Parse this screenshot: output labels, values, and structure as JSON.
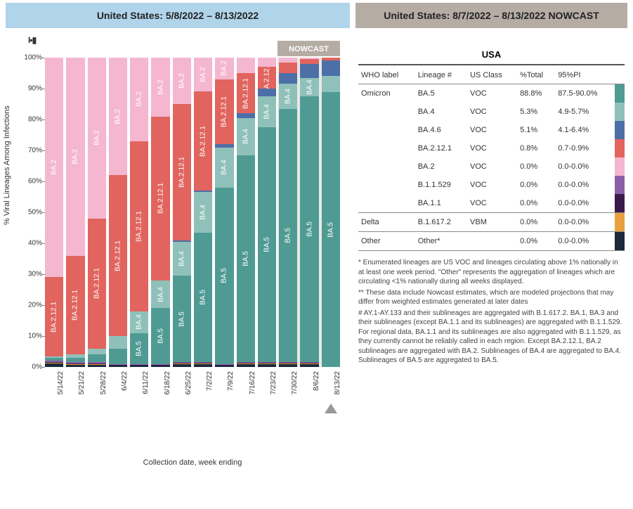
{
  "headers": {
    "left": "United States: 5/8/2022 – 8/13/2022",
    "right": "United States: 8/7/2022 – 8/13/2022 NOWCAST"
  },
  "colors": {
    "header_left_bg": "#b0d4ea",
    "header_right_bg": "#b5aca4",
    "BA.5": "#4f9b94",
    "BA.4": "#8fc1ba",
    "BA.4.6": "#4d6fa8",
    "BA.2.12.1": "#e1645e",
    "BA.2": "#f4b7cf",
    "B.1.1.529": "#8b5fa8",
    "BA.1.1": "#3a1a4a",
    "B.1.617.2": "#e8a23d",
    "Other": "#1a2a3a"
  },
  "chart": {
    "type": "stacked-bar",
    "y_label": "% Viral Lineages Among Infections",
    "x_label": "Collection date, week ending",
    "nowcast_label": "NOWCAST",
    "ylim": [
      0,
      100
    ],
    "yticks": [
      0,
      10,
      20,
      30,
      40,
      50,
      60,
      70,
      80,
      90,
      100
    ],
    "ytick_labels": [
      "0%",
      "10%",
      "20%",
      "30%",
      "40%",
      "50%",
      "60%",
      "70%",
      "80%",
      "90%",
      "100%"
    ],
    "categories": [
      "5/14/22",
      "5/21/22",
      "5/28/22",
      "6/4/22",
      "6/11/22",
      "6/18/22",
      "6/25/22",
      "7/2/22",
      "7/9/22",
      "7/16/22",
      "7/23/22",
      "7/30/22",
      "8/6/22",
      "8/13/22"
    ],
    "nowcast_start_index": 11,
    "arrow_index": 13,
    "series_order": [
      "Other",
      "B.1.617.2",
      "BA.1.1",
      "B.1.1.529",
      "BA.5",
      "BA.4",
      "BA.4.6",
      "BA.2.12.1",
      "BA.2"
    ],
    "label_lineages": [
      "BA.5",
      "BA.4",
      "BA.2.12.1",
      "BA.2",
      "BA.4.6"
    ],
    "min_label_pct": 6,
    "data": {
      "BA.5": [
        1.0,
        1.5,
        2.5,
        5.0,
        10.0,
        18.0,
        28.0,
        42.0,
        57.0,
        67.0,
        76.0,
        82.0,
        86.0,
        88.8
      ],
      "BA.4": [
        0.5,
        1.0,
        2.0,
        4.0,
        7.0,
        9.0,
        11.0,
        13.0,
        13.0,
        12.0,
        10.0,
        8.0,
        6.0,
        5.3
      ],
      "BA.4.6": [
        0.0,
        0.0,
        0.0,
        0.0,
        0.0,
        0.0,
        0.5,
        0.5,
        1.0,
        1.5,
        2.5,
        3.5,
        4.5,
        5.1
      ],
      "BA.2.12.1": [
        25.5,
        32.0,
        42.0,
        52.0,
        55.0,
        53.0,
        44.0,
        32.0,
        21.0,
        13.0,
        7.0,
        3.5,
        1.5,
        0.8
      ],
      "BA.2": [
        71.0,
        64.0,
        52.0,
        38.0,
        27.0,
        19.0,
        15.0,
        11.0,
        7.0,
        5.0,
        3.0,
        1.5,
        0.5,
        0.0
      ],
      "B.1.1.529": [
        0.3,
        0.3,
        0.3,
        0.2,
        0.2,
        0.2,
        0.2,
        0.2,
        0.2,
        0.2,
        0.2,
        0.2,
        0.2,
        0.0
      ],
      "BA.1.1": [
        0.3,
        0.3,
        0.3,
        0.2,
        0.2,
        0.2,
        0.2,
        0.2,
        0.2,
        0.2,
        0.2,
        0.2,
        0.2,
        0.0
      ],
      "B.1.617.2": [
        0.2,
        0.2,
        0.2,
        0.2,
        0.2,
        0.2,
        0.1,
        0.1,
        0.1,
        0.1,
        0.1,
        0.1,
        0.1,
        0.0
      ],
      "Other": [
        1.2,
        0.7,
        0.7,
        0.4,
        0.4,
        0.4,
        1.0,
        1.0,
        0.5,
        1.0,
        1.0,
        1.0,
        1.0,
        0.0
      ]
    }
  },
  "table": {
    "title": "USA",
    "columns": [
      "WHO label",
      "Lineage #",
      "US Class",
      "%Total",
      "95%PI"
    ],
    "rows": [
      {
        "who": "Omicron",
        "lineage": "BA.5",
        "class": "VOC",
        "pct": "88.8%",
        "pi": "87.5-90.0%",
        "swatch": "BA.5",
        "group_start": true
      },
      {
        "who": "",
        "lineage": "BA.4",
        "class": "VOC",
        "pct": "5.3%",
        "pi": "4.9-5.7%",
        "swatch": "BA.4"
      },
      {
        "who": "",
        "lineage": "BA.4.6",
        "class": "VOC",
        "pct": "5.1%",
        "pi": "4.1-6.4%",
        "swatch": "BA.4.6"
      },
      {
        "who": "",
        "lineage": "BA.2.12.1",
        "class": "VOC",
        "pct": "0.8%",
        "pi": "0.7-0.9%",
        "swatch": "BA.2.12.1"
      },
      {
        "who": "",
        "lineage": "BA.2",
        "class": "VOC",
        "pct": "0.0%",
        "pi": "0.0-0.0%",
        "swatch": "BA.2"
      },
      {
        "who": "",
        "lineage": "B.1.1.529",
        "class": "VOC",
        "pct": "0.0%",
        "pi": "0.0-0.0%",
        "swatch": "B.1.1.529"
      },
      {
        "who": "",
        "lineage": "BA.1.1",
        "class": "VOC",
        "pct": "0.0%",
        "pi": "0.0-0.0%",
        "swatch": "BA.1.1"
      },
      {
        "who": "Delta",
        "lineage": "B.1.617.2",
        "class": "VBM",
        "pct": "0.0%",
        "pi": "0.0-0.0%",
        "swatch": "B.1.617.2",
        "group_start": true
      },
      {
        "who": "Other",
        "lineage": "Other*",
        "class": "",
        "pct": "0.0%",
        "pi": "0.0-0.0%",
        "swatch": "Other",
        "group_start": true,
        "group_end": true
      }
    ]
  },
  "footnotes": [
    "*     Enumerated lineages are US VOC and lineages circulating above 1% nationally in at least one week period. \"Other\" represents the aggregation of lineages which are circulating <1% nationally during all weeks displayed.",
    "**    These data include Nowcast estimates, which are modeled projections that may differ from weighted estimates generated at later dates",
    "#     AY.1-AY.133 and their sublineages are aggregated with B.1.617.2. BA.1, BA.3 and their sublineages (except BA.1.1 and its sublineages) are aggregated with B.1.1.529. For regional data, BA.1.1 and its sublineages are also aggregated with B.1.1.529, as they currently cannot be reliably called in each region. Except BA.2.12.1, BA.2 sublineages are aggregated with BA.2. Sublineages of BA.4 are aggregated to BA.4. Sublineages of BA.5 are aggregated to BA.5."
  ]
}
